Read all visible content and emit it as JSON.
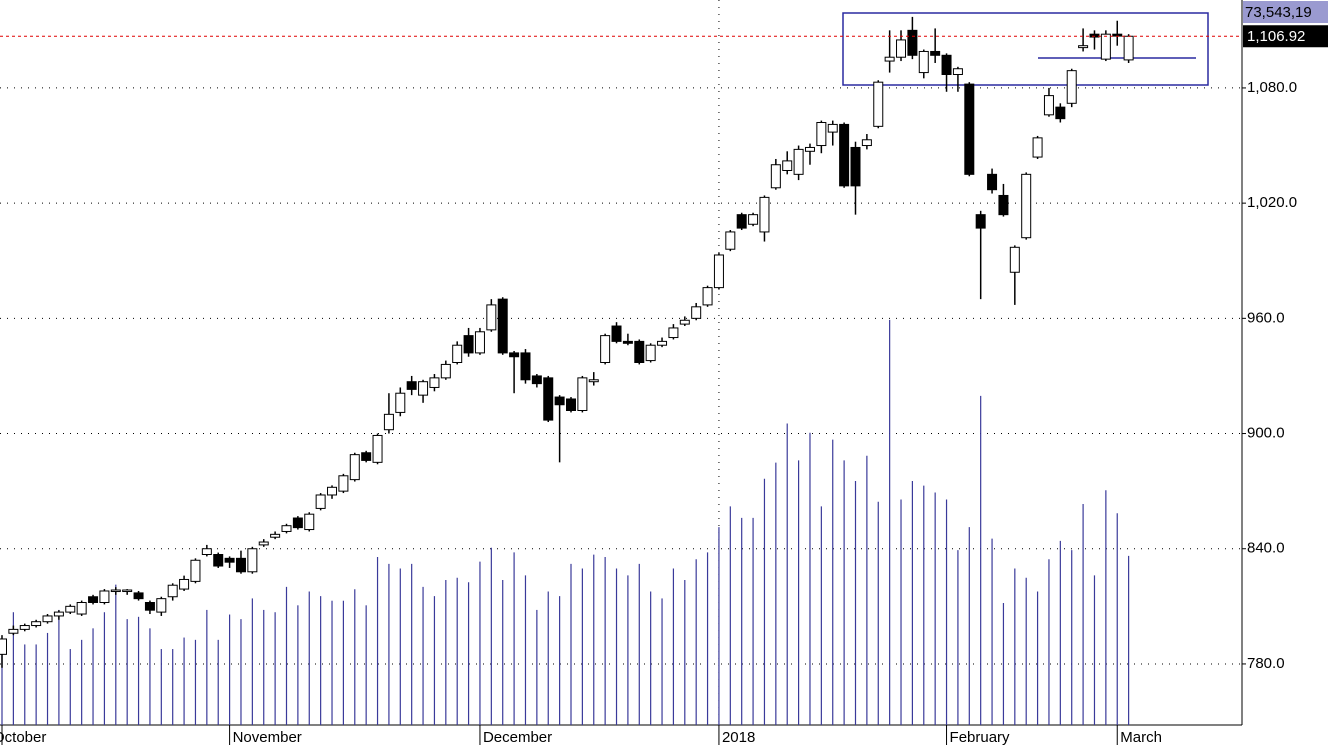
{
  "chart_data": {
    "type": "candlestick",
    "categories": [
      "October",
      null,
      null,
      null,
      null,
      null,
      null,
      null,
      null,
      null,
      null,
      null,
      null,
      null,
      null,
      null,
      null,
      null,
      null,
      null,
      "November",
      null,
      null,
      null,
      null,
      null,
      null,
      null,
      null,
      null,
      null,
      null,
      null,
      null,
      null,
      null,
      null,
      null,
      null,
      null,
      null,
      null,
      "December",
      null,
      null,
      null,
      null,
      null,
      null,
      null,
      null,
      null,
      null,
      null,
      null,
      null,
      null,
      null,
      null,
      null,
      null,
      null,
      null,
      "2018",
      null,
      null,
      null,
      null,
      null,
      null,
      null,
      null,
      null,
      null,
      null,
      null,
      null,
      null,
      null,
      null,
      null,
      null,
      null,
      "February",
      null,
      null,
      null,
      null,
      null,
      null,
      null,
      null,
      null,
      null,
      null,
      null,
      null,
      null,
      "March",
      null
    ],
    "open": [
      785,
      796,
      798,
      800,
      802,
      805,
      807,
      806,
      815,
      812,
      818,
      818,
      817,
      812,
      807,
      815,
      819,
      823,
      837,
      837,
      835,
      835,
      828,
      842,
      846,
      849,
      856,
      850,
      861,
      868,
      870,
      876,
      890,
      885,
      902,
      911,
      927,
      920,
      924,
      929,
      937,
      951,
      942,
      954,
      970,
      942,
      942,
      930,
      929,
      919,
      918,
      912,
      927,
      937,
      956,
      948,
      948,
      938,
      946,
      950,
      957,
      960,
      967,
      976,
      996,
      1014,
      1009,
      1005,
      1028,
      1037,
      1035,
      1047,
      1050,
      1057,
      1061,
      1049,
      1050,
      1060,
      1094,
      1096,
      1110,
      1088,
      1099,
      1097,
      1087,
      1082,
      1014,
      1035,
      1024,
      984,
      1002,
      1044,
      1066,
      1070,
      1072,
      1101,
      1108,
      1095,
      1108,
      1094.6
    ],
    "high": [
      795,
      800,
      801,
      803,
      806,
      808,
      811,
      813,
      816,
      819,
      820,
      819,
      818,
      813,
      815,
      822,
      826,
      835,
      842,
      838,
      836,
      839,
      841,
      845,
      849,
      853,
      857,
      859,
      869,
      873,
      879,
      890,
      891,
      900,
      921,
      924,
      930,
      928,
      931,
      938,
      948,
      955,
      955,
      970,
      971,
      943,
      944,
      931,
      930,
      920,
      919,
      930,
      932,
      952,
      958,
      952,
      949,
      947,
      950,
      957,
      961,
      968,
      977,
      994,
      1006,
      1015,
      1015,
      1024,
      1043,
      1047,
      1050,
      1051,
      1063,
      1063,
      1062,
      1052,
      1056,
      1084,
      1110,
      1110,
      1117,
      1100,
      1111,
      1098,
      1091,
      1083,
      1016,
      1038,
      1030,
      998,
      1036,
      1055,
      1080,
      1072,
      1090,
      1111,
      1110,
      1110,
      1115,
      1108
    ],
    "low": [
      778,
      795,
      797,
      799,
      801,
      803,
      806,
      805,
      811,
      811,
      816,
      816,
      813,
      806,
      805,
      813,
      818,
      822,
      836,
      830,
      830,
      827,
      827,
      841,
      845,
      848,
      850,
      849,
      860,
      866,
      869,
      875,
      885,
      884,
      900,
      909,
      920,
      916,
      922,
      928,
      936,
      940,
      941,
      953,
      941,
      921,
      926,
      924,
      906,
      885,
      911,
      911,
      925,
      936,
      947,
      946,
      936,
      937,
      945,
      949,
      956,
      959,
      966,
      975,
      995,
      1006,
      1008,
      1000,
      1027,
      1035,
      1032,
      1040,
      1046,
      1050,
      1028,
      1014,
      1048,
      1059,
      1088,
      1094,
      1095,
      1085,
      1093,
      1078,
      1078,
      1034,
      970,
      1025,
      1013,
      967,
      1001,
      1043,
      1065,
      1062,
      1070,
      1099,
      1100,
      1094,
      1102,
      1093
    ],
    "close": [
      793,
      798,
      800,
      802,
      805,
      807,
      810,
      812,
      812,
      818,
      818.5,
      818.5,
      814,
      808,
      814,
      821,
      824,
      834,
      840,
      831,
      833,
      828,
      840,
      843.5,
      847.5,
      852,
      851,
      858,
      868,
      872,
      878,
      889,
      886,
      899,
      910,
      921,
      923,
      927,
      929,
      936,
      946,
      942,
      953,
      967,
      942,
      940,
      928,
      926,
      907,
      915,
      912,
      929,
      928,
      951,
      948,
      947,
      937,
      946,
      948,
      955,
      959,
      966,
      976,
      993,
      1005,
      1007,
      1014,
      1023,
      1040,
      1042,
      1048,
      1049,
      1062,
      1061,
      1029,
      1029,
      1053,
      1083,
      1096,
      1105,
      1097,
      1099,
      1097,
      1087,
      1090,
      1035,
      1007,
      1027,
      1014,
      997,
      1035,
      1054,
      1076,
      1064,
      1089,
      1102,
      1106.5,
      1108,
      1107,
      1106.92
    ],
    "volume": [
      37,
      49,
      35,
      35,
      40,
      50,
      33,
      37,
      42,
      49,
      61,
      46,
      47,
      42,
      33,
      33,
      38,
      37,
      50,
      37,
      48,
      46,
      55,
      50,
      49,
      60,
      52,
      58,
      56,
      54,
      54,
      59,
      52,
      73,
      70,
      68,
      70,
      60,
      56,
      63,
      64,
      62,
      71,
      77,
      63,
      75,
      65,
      50,
      58,
      56,
      70,
      68,
      74,
      73,
      68,
      65,
      70,
      58,
      55,
      68,
      63,
      72,
      75,
      86,
      95,
      90,
      90,
      107,
      114,
      131,
      115,
      127,
      95,
      124,
      115,
      106,
      117,
      97,
      176,
      98,
      106,
      104,
      101,
      98,
      76,
      86,
      143,
      81,
      53,
      68,
      64,
      58,
      72,
      80,
      76,
      96,
      65,
      102,
      92,
      73.5
    ],
    "ylim": [
      748.2,
      1125.8
    ],
    "vlim": [
      0,
      315
    ],
    "yticks": [
      {
        "value": 780,
        "label": "780.0"
      },
      {
        "value": 840,
        "label": "840.0"
      },
      {
        "value": 900,
        "label": "900.0"
      },
      {
        "value": 960,
        "label": "960.0"
      },
      {
        "value": 1020,
        "label": "1,020.0"
      },
      {
        "value": 1080,
        "label": "1,080.0"
      }
    ],
    "close_label": "1,106.92",
    "volume_label": "73,543,19",
    "grid": true,
    "up_color": "#ffffff",
    "down_color": "#000000",
    "volume_color": "#3a3a9a",
    "last_line_color": "#e00000"
  }
}
